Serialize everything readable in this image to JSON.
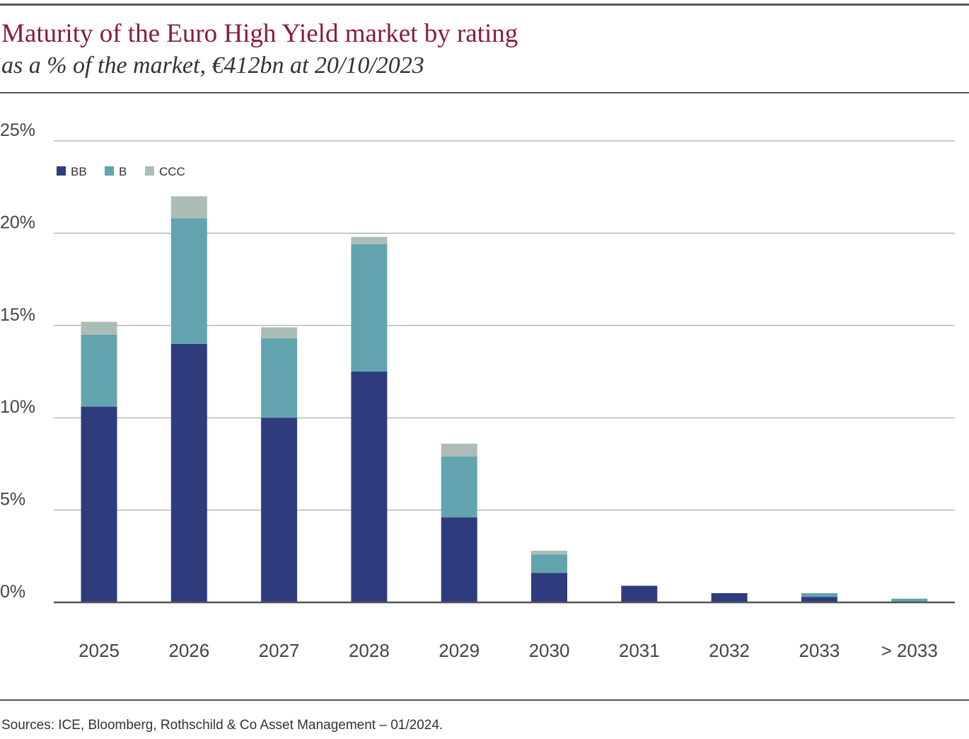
{
  "header": {
    "title": "Maturity of the Euro High Yield market by rating",
    "subtitle": "as a % of the market, €412bn at 20/10/2023"
  },
  "footer": {
    "source": "Sources: ICE, Bloomberg, Rothschild & Co Asset Management – 01/2024."
  },
  "colors": {
    "title": "#8b1a3c",
    "BB": "#2e3c7e",
    "B": "#62a4ae",
    "CCC": "#abbdb6",
    "grid": "#9a9a9a",
    "axis": "#555555"
  },
  "chart_data": {
    "type": "bar",
    "stacked": true,
    "categories": [
      "2025",
      "2026",
      "2027",
      "2028",
      "2029",
      "2030",
      "2031",
      "2032",
      "2033",
      "> 2033"
    ],
    "series": [
      {
        "name": "BB",
        "values": [
          10.6,
          14.0,
          10.0,
          12.5,
          4.6,
          1.6,
          0.9,
          0.5,
          0.3,
          0.0
        ]
      },
      {
        "name": "B",
        "values": [
          3.9,
          6.8,
          4.3,
          6.9,
          3.3,
          1.0,
          0.0,
          0.0,
          0.2,
          0.2
        ]
      },
      {
        "name": "CCC",
        "values": [
          0.7,
          1.2,
          0.6,
          0.4,
          0.7,
          0.2,
          0.0,
          0.0,
          0.0,
          0.0
        ]
      }
    ],
    "ylim": [
      0,
      25
    ],
    "yticks": [
      "0%",
      "5%",
      "10%",
      "15%",
      "20%",
      "25%"
    ],
    "ytick_values": [
      0,
      5,
      10,
      15,
      20,
      25
    ],
    "legend_position": "top-left",
    "grid": true
  }
}
